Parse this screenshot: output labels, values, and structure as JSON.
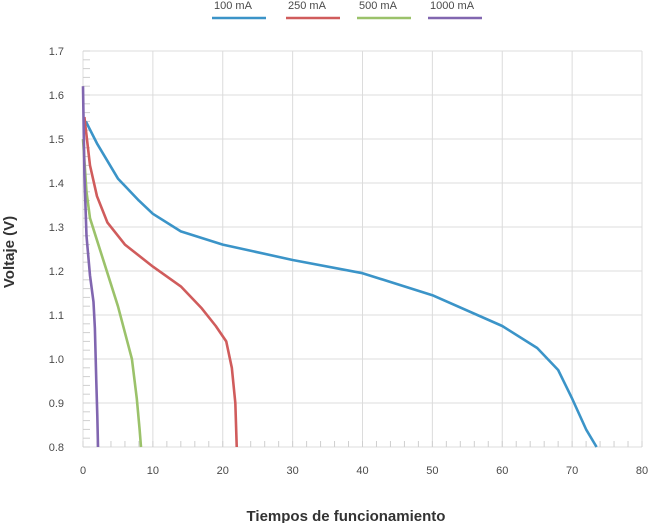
{
  "chart_data": {
    "type": "line",
    "xlabel": "Tiempos de funcionamiento",
    "ylabel": "Voltaje (V)",
    "xlim": [
      0,
      80
    ],
    "ylim": [
      0.8,
      1.7
    ],
    "xticks": [
      "0",
      "10",
      "20",
      "30",
      "40",
      "50",
      "60",
      "70",
      "80"
    ],
    "yticks": [
      "0.8",
      "0.9",
      "1.0",
      "1.1",
      "1.2",
      "1.3",
      "1.4",
      "1.5",
      "1.6",
      "1.7"
    ],
    "grid": true,
    "legend_position": "top-center",
    "series": [
      {
        "name": "100 mA",
        "color": "#3b94c8",
        "points": [
          [
            0.4,
            1.54
          ],
          [
            2,
            1.49
          ],
          [
            5,
            1.41
          ],
          [
            8,
            1.36
          ],
          [
            10,
            1.33
          ],
          [
            14,
            1.29
          ],
          [
            20,
            1.26
          ],
          [
            30,
            1.225
          ],
          [
            40,
            1.195
          ],
          [
            50,
            1.145
          ],
          [
            60,
            1.075
          ],
          [
            65,
            1.025
          ],
          [
            68,
            0.975
          ],
          [
            70,
            0.91
          ],
          [
            72,
            0.84
          ],
          [
            73.5,
            0.8
          ]
        ]
      },
      {
        "name": "250 mA",
        "color": "#d05c5c",
        "points": [
          [
            0.2,
            1.55
          ],
          [
            1,
            1.44
          ],
          [
            2,
            1.37
          ],
          [
            3.5,
            1.31
          ],
          [
            6,
            1.26
          ],
          [
            10,
            1.21
          ],
          [
            14,
            1.165
          ],
          [
            17,
            1.115
          ],
          [
            19,
            1.075
          ],
          [
            20.5,
            1.04
          ],
          [
            21.3,
            0.98
          ],
          [
            21.8,
            0.9
          ],
          [
            22,
            0.8
          ]
        ]
      },
      {
        "name": "500 mA",
        "color": "#9bc26a",
        "points": [
          [
            0,
            1.5
          ],
          [
            0.5,
            1.38
          ],
          [
            1,
            1.32
          ],
          [
            2,
            1.27
          ],
          [
            3,
            1.22
          ],
          [
            4,
            1.17
          ],
          [
            5,
            1.12
          ],
          [
            6,
            1.06
          ],
          [
            7,
            1.0
          ],
          [
            7.7,
            0.91
          ],
          [
            8.1,
            0.84
          ],
          [
            8.3,
            0.8
          ]
        ]
      },
      {
        "name": "1000 mA",
        "color": "#8166b0",
        "points": [
          [
            0,
            1.62
          ],
          [
            0.2,
            1.42
          ],
          [
            0.5,
            1.28
          ],
          [
            1.0,
            1.19
          ],
          [
            1.5,
            1.13
          ],
          [
            1.7,
            1.07
          ],
          [
            1.9,
            0.95
          ],
          [
            2.05,
            0.87
          ],
          [
            2.15,
            0.8
          ]
        ]
      }
    ]
  }
}
